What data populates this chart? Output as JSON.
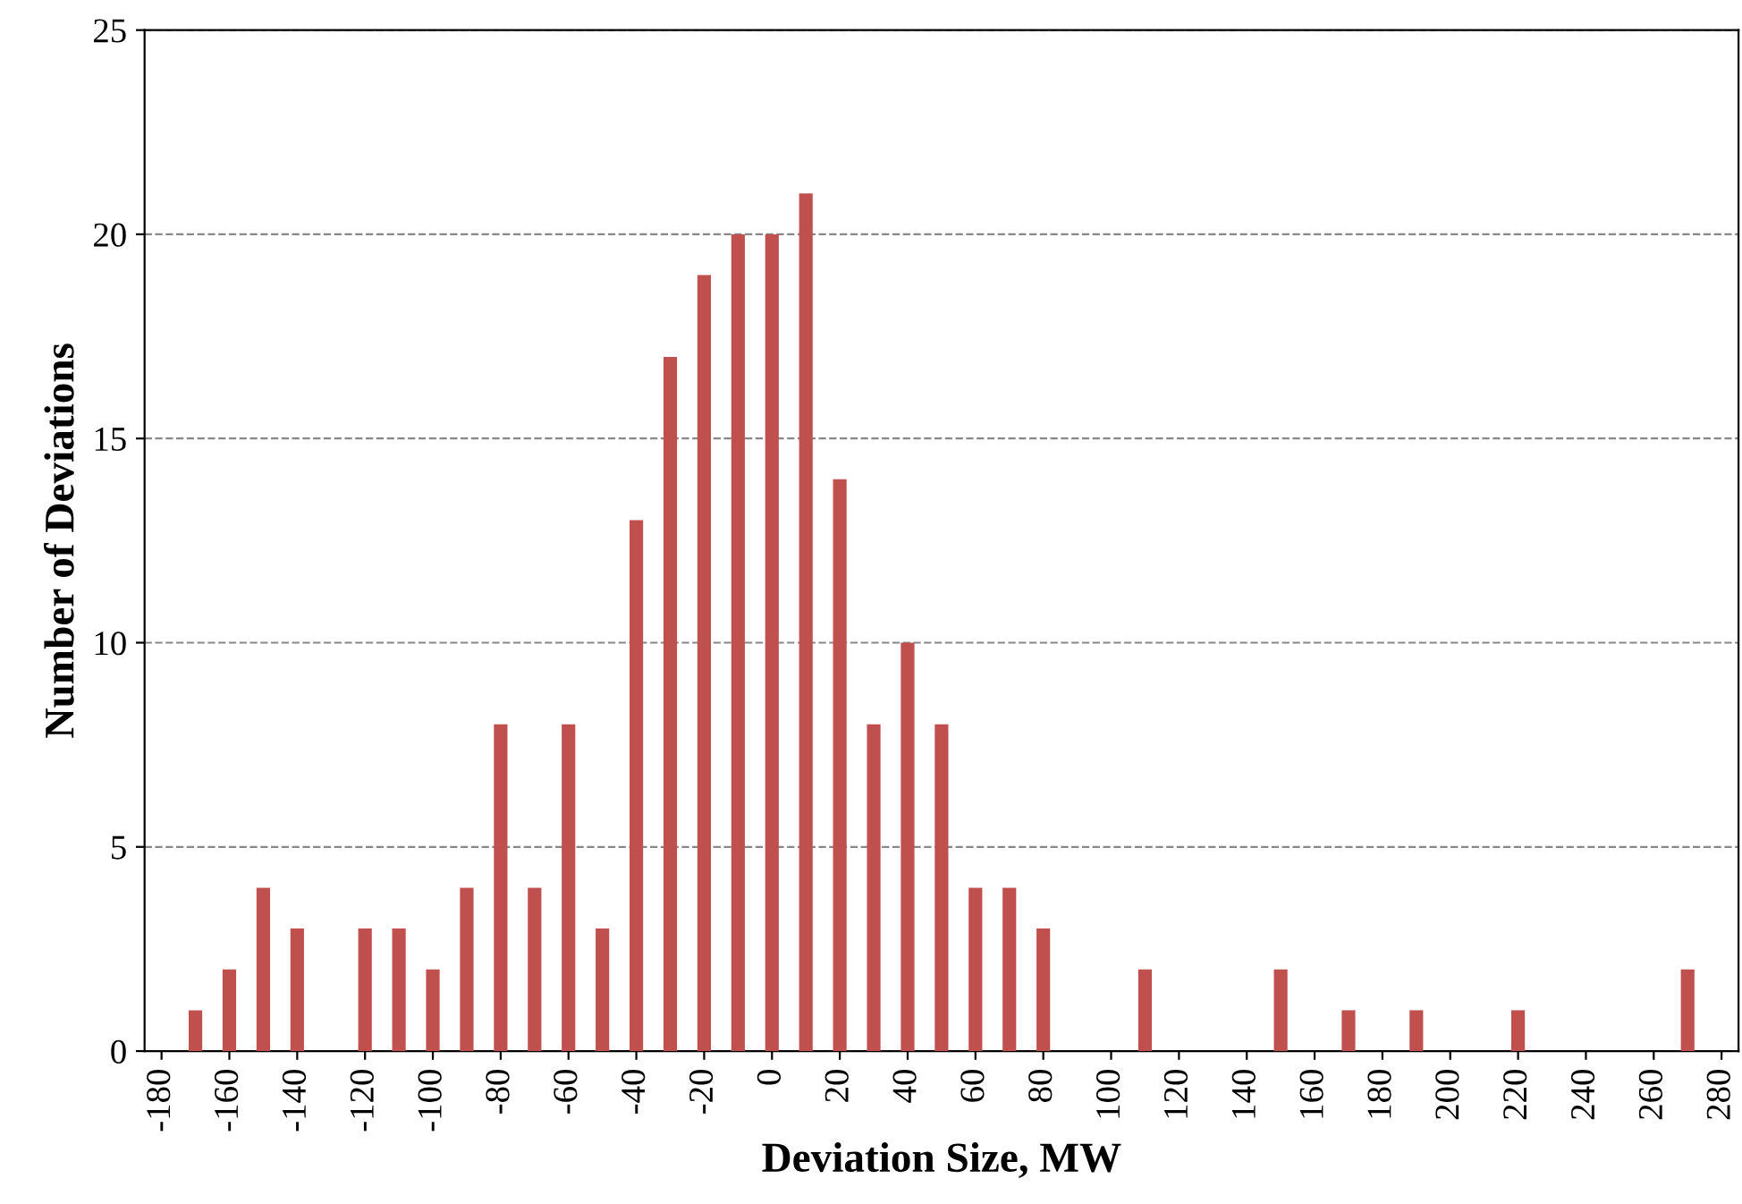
{
  "chart_data": {
    "type": "bar",
    "xlabel": "Deviation Size, MW",
    "ylabel": "Number of Deviations",
    "categories": [
      "-180",
      null,
      "-160",
      null,
      "-140",
      null,
      "-120",
      null,
      "-100",
      null,
      "-80",
      null,
      "-60",
      null,
      "-40",
      null,
      "-20",
      null,
      "0",
      null,
      "20",
      null,
      "40",
      null,
      "60",
      null,
      "80",
      null,
      "100",
      null,
      "120",
      null,
      "140",
      null,
      "160",
      null,
      "180",
      null,
      "200",
      null,
      "220",
      null,
      "240",
      null,
      "260",
      null,
      "280"
    ],
    "values": [
      0,
      1,
      2,
      4,
      3,
      0,
      3,
      3,
      2,
      4,
      8,
      4,
      8,
      3,
      13,
      17,
      19,
      20,
      20,
      21,
      14,
      8,
      10,
      8,
      4,
      4,
      3,
      0,
      0,
      2,
      0,
      0,
      0,
      2,
      0,
      1,
      0,
      1,
      0,
      0,
      1,
      0,
      0,
      0,
      0,
      2,
      0
    ],
    "color": "#c0504d",
    "ylim": [
      0,
      25
    ],
    "yticks": [
      0,
      5,
      10,
      15,
      20,
      25
    ],
    "grid": "y",
    "legend": false
  }
}
